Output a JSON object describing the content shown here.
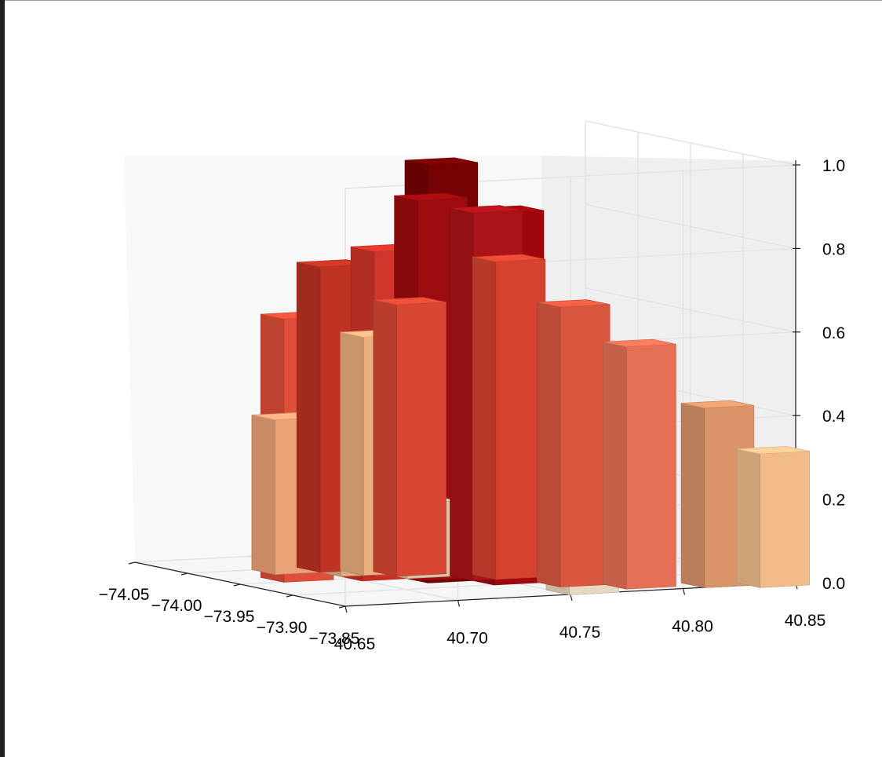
{
  "chart_data": {
    "type": "bar",
    "projection": "3d",
    "title": "",
    "xlabel": "",
    "ylabel": "",
    "zlabel": "",
    "colormap": "OrRd",
    "grid": true,
    "xlim": [
      -74.05,
      -73.85
    ],
    "ylim": [
      40.65,
      40.85
    ],
    "zlim": [
      0.0,
      1.0
    ],
    "x_ticks": [
      "−74.05",
      "−74.00",
      "−73.95",
      "−73.90",
      "−73.85"
    ],
    "y_ticks": [
      "40.65",
      "40.70",
      "40.75",
      "40.80",
      "40.85"
    ],
    "z_ticks": [
      "0.0",
      "0.2",
      "0.4",
      "0.6",
      "0.8",
      "1.0"
    ],
    "bars": [
      {
        "x": -73.99,
        "y": 40.69,
        "z": 0.37,
        "color": "#f4a97c"
      },
      {
        "x": -73.97,
        "y": 40.71,
        "z": 0.36,
        "color": "#e8b48a"
      },
      {
        "x": -73.97,
        "y": 40.72,
        "z": 0.57,
        "color": "#f5b783"
      },
      {
        "x": -73.95,
        "y": 40.73,
        "z": 0.18,
        "color": "#e2cfaf"
      },
      {
        "x": -73.99,
        "y": 40.71,
        "z": 0.73,
        "color": "#c73525"
      },
      {
        "x": -73.96,
        "y": 40.68,
        "z": 0.63,
        "color": "#e8513a"
      },
      {
        "x": -73.96,
        "y": 40.72,
        "z": 0.78,
        "color": "#d9382d"
      },
      {
        "x": -73.95,
        "y": 40.71,
        "z": 0.73,
        "color": "#d22f25"
      },
      {
        "x": -73.96,
        "y": 40.73,
        "z": 0.65,
        "color": "#e04a35"
      },
      {
        "x": -73.94,
        "y": 40.73,
        "z": 0.91,
        "color": "#a30c0f"
      },
      {
        "x": -73.93,
        "y": 40.75,
        "z": 0.88,
        "color": "#b3141a"
      },
      {
        "x": -73.93,
        "y": 40.76,
        "z": 0.76,
        "color": "#de4632"
      },
      {
        "x": -73.93,
        "y": 40.73,
        "z": 1.0,
        "color": "#7b0203"
      },
      {
        "x": -73.91,
        "y": 40.75,
        "z": 0.89,
        "color": "#a6070e"
      },
      {
        "x": -73.89,
        "y": 40.77,
        "z": 0.67,
        "color": "#e45a42"
      },
      {
        "x": -73.87,
        "y": 40.79,
        "z": 0.58,
        "color": "#f07559"
      },
      {
        "x": -73.86,
        "y": 40.82,
        "z": 0.43,
        "color": "#e39a6e"
      },
      {
        "x": -73.85,
        "y": 40.84,
        "z": 0.32,
        "color": "#fbc490"
      },
      {
        "x": -73.86,
        "y": 40.76,
        "z": 0.12,
        "color": "#f1e2c9"
      }
    ]
  }
}
